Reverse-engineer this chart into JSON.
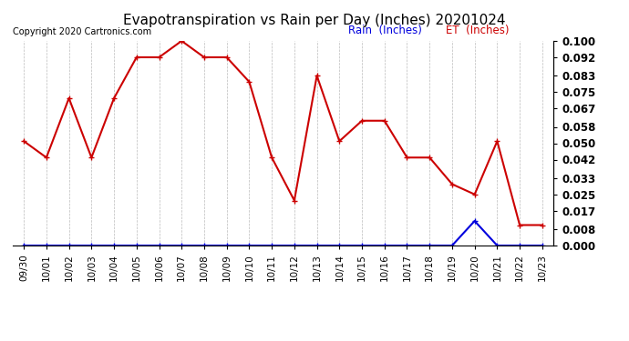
{
  "title": "Evapotranspiration vs Rain per Day (Inches) 20201024",
  "copyright": "Copyright 2020 Cartronics.com",
  "legend_rain": "Rain  (Inches)",
  "legend_et": "ET  (Inches)",
  "x_labels": [
    "09/30",
    "10/01",
    "10/02",
    "10/03",
    "10/04",
    "10/05",
    "10/06",
    "10/07",
    "10/08",
    "10/09",
    "10/10",
    "10/11",
    "10/12",
    "10/13",
    "10/14",
    "10/15",
    "10/16",
    "10/17",
    "10/18",
    "10/19",
    "10/20",
    "10/21",
    "10/22",
    "10/23"
  ],
  "et_values": [
    0.051,
    0.043,
    0.072,
    0.043,
    0.072,
    0.092,
    0.092,
    0.1,
    0.092,
    0.092,
    0.08,
    0.043,
    0.022,
    0.083,
    0.051,
    0.061,
    0.061,
    0.043,
    0.043,
    0.03,
    0.025,
    0.051,
    0.01,
    0.01
  ],
  "rain_values": [
    0.0,
    0.0,
    0.0,
    0.0,
    0.0,
    0.0,
    0.0,
    0.0,
    0.0,
    0.0,
    0.0,
    0.0,
    0.0,
    0.0,
    0.0,
    0.0,
    0.0,
    0.0,
    0.0,
    0.0,
    0.012,
    0.0,
    0.0,
    0.0
  ],
  "ylim": [
    0.0,
    0.1
  ],
  "yticks": [
    0.0,
    0.008,
    0.017,
    0.025,
    0.033,
    0.042,
    0.05,
    0.058,
    0.067,
    0.075,
    0.083,
    0.092,
    0.1
  ],
  "et_color": "#cc0000",
  "rain_color": "#0000dd",
  "background_color": "#ffffff",
  "grid_color": "#bbbbbb",
  "title_fontsize": 11,
  "copyright_fontsize": 7,
  "legend_fontsize": 8.5,
  "tick_fontsize": 7.5,
  "ytick_fontsize": 8.5
}
